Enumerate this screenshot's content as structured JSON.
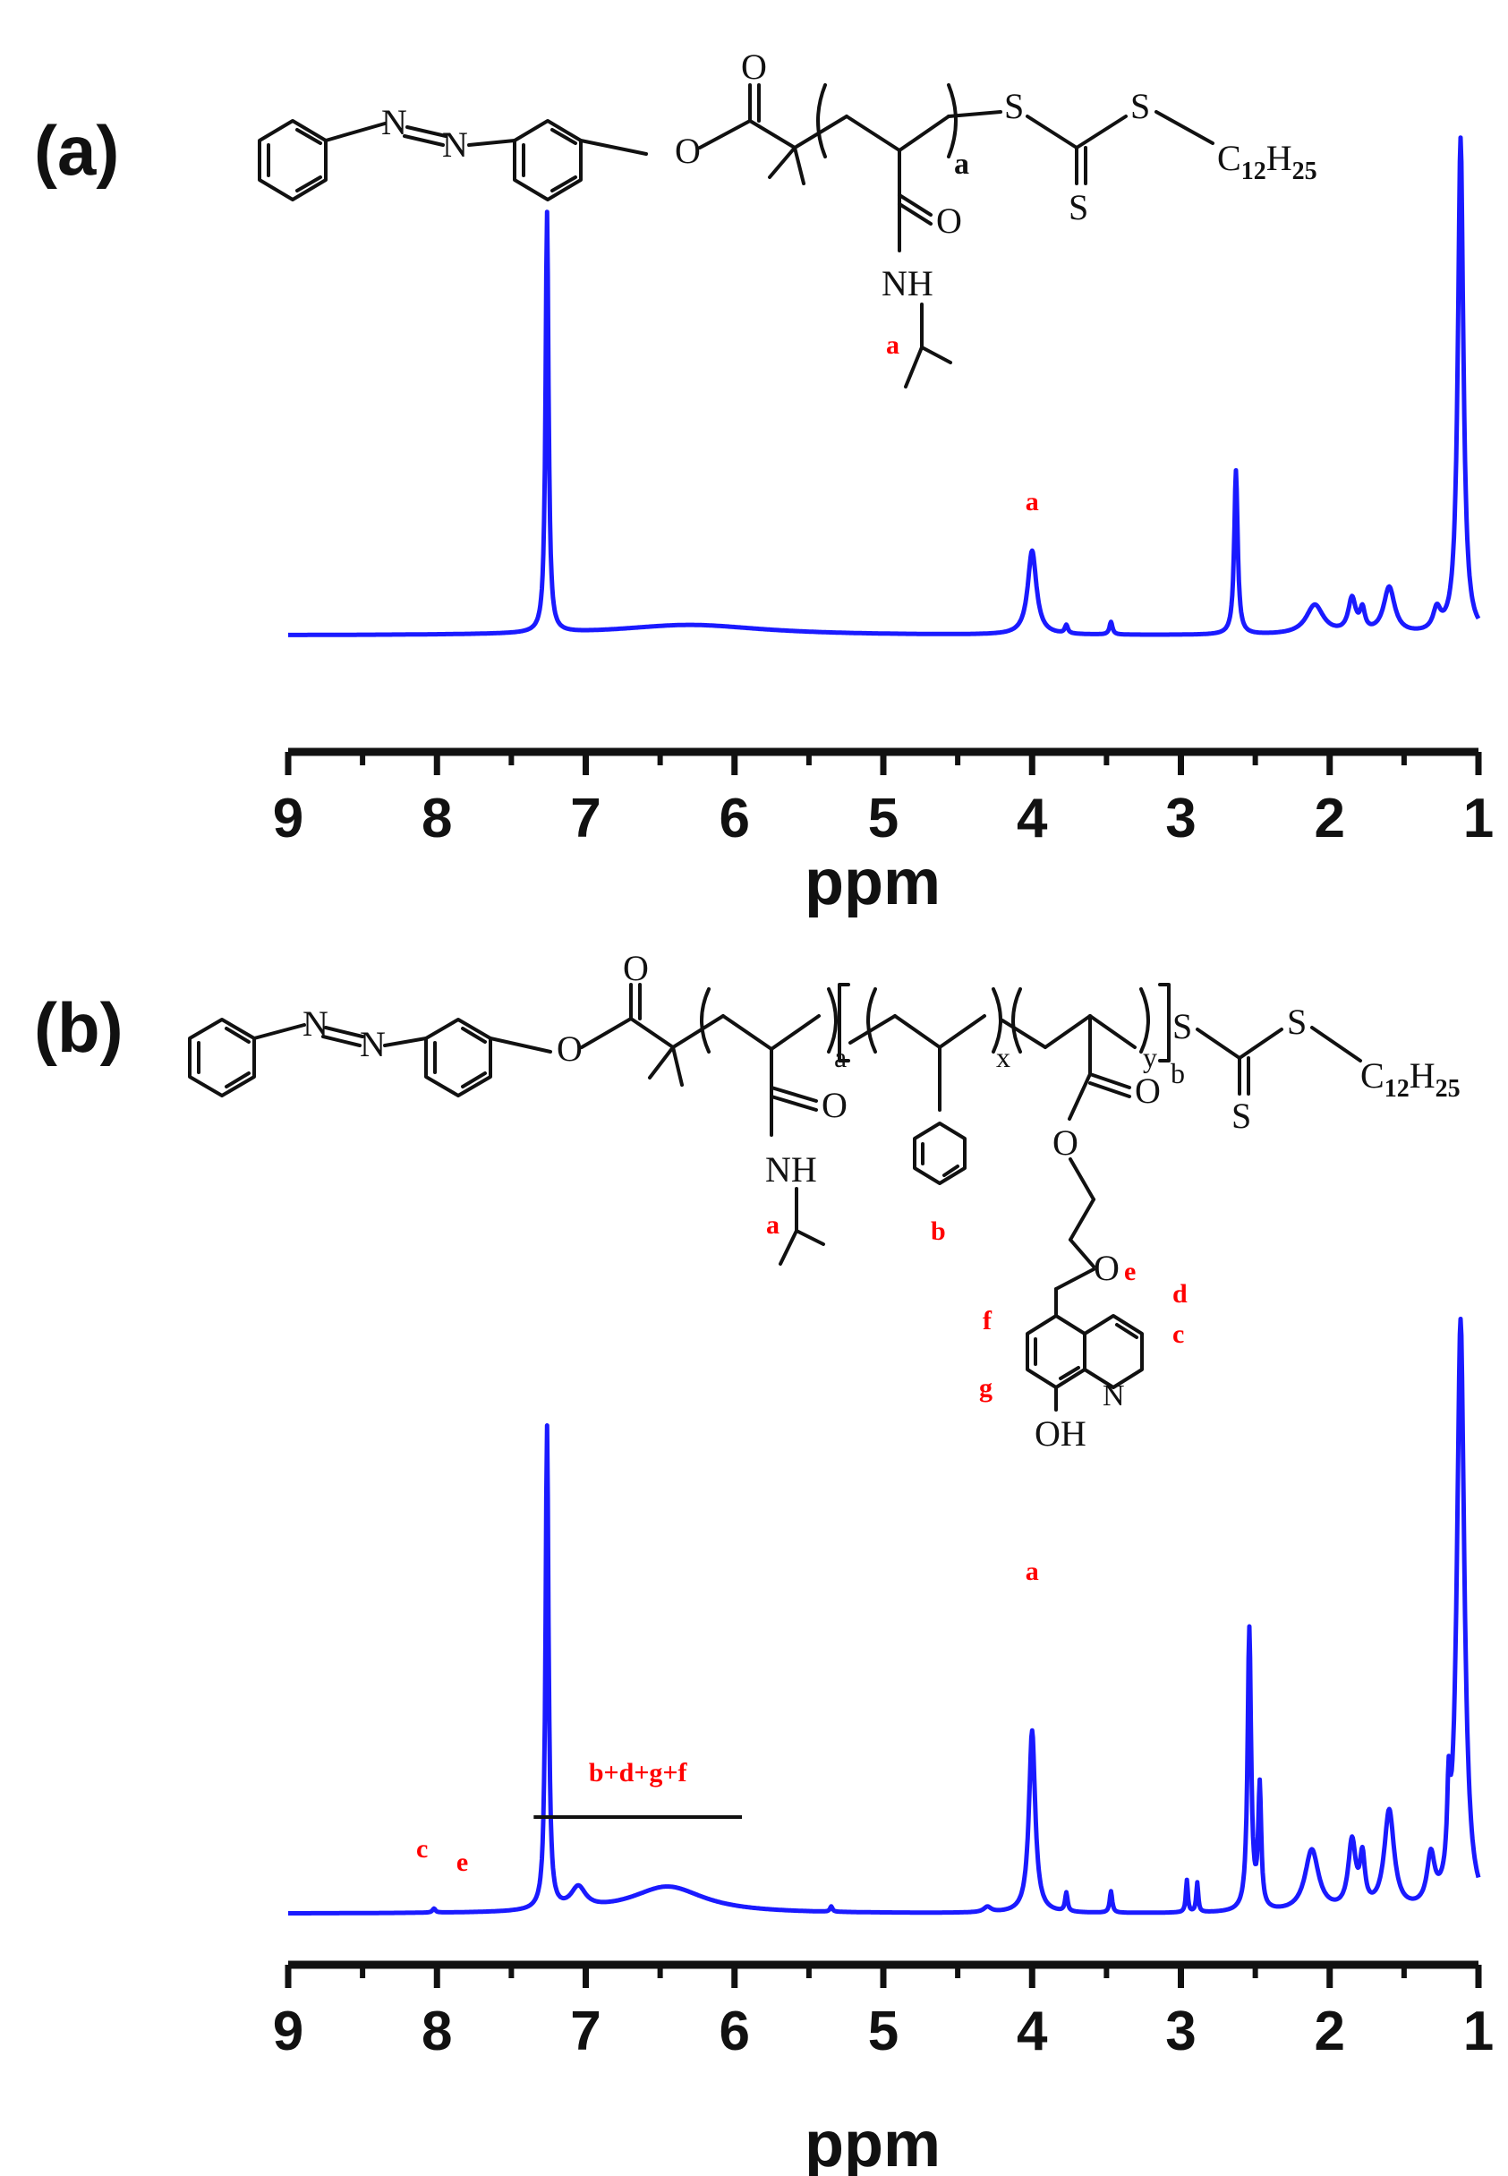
{
  "colors": {
    "spectrum": "#1a1aff",
    "annotation": "#ff0000",
    "axis": "#111111"
  },
  "chart_data": [
    {
      "type": "line",
      "panel_label": "(a)",
      "xlabel": "ppm",
      "xlim": [
        9,
        1
      ],
      "x_reversed": true,
      "xticks": [
        9,
        8,
        7,
        6,
        5,
        4,
        3,
        2,
        1
      ],
      "tick_labels": [
        "9",
        "8",
        "7",
        "6",
        "5",
        "4",
        "3",
        "2",
        "1"
      ],
      "series": [
        {
          "peaks": [
            {
              "ppm": 7.26,
              "height": 1.0,
              "width": 0.012
            },
            {
              "ppm": 6.3,
              "height": 0.025,
              "width": 0.6
            },
            {
              "ppm": 4.0,
              "height": 0.2,
              "width": 0.035
            },
            {
              "ppm": 3.77,
              "height": 0.02,
              "width": 0.012
            },
            {
              "ppm": 3.47,
              "height": 0.03,
              "width": 0.012
            },
            {
              "ppm": 2.63,
              "height": 0.39,
              "width": 0.014
            },
            {
              "ppm": 2.1,
              "height": 0.07,
              "width": 0.07
            },
            {
              "ppm": 1.85,
              "height": 0.08,
              "width": 0.03
            },
            {
              "ppm": 1.78,
              "height": 0.05,
              "width": 0.02
            },
            {
              "ppm": 1.6,
              "height": 0.11,
              "width": 0.045
            },
            {
              "ppm": 1.28,
              "height": 0.05,
              "width": 0.03
            },
            {
              "ppm": 1.12,
              "height": 1.18,
              "width": 0.022
            }
          ]
        }
      ],
      "annotations": [
        {
          "text": "a",
          "ppm": 4.0
        }
      ],
      "structure_labels": {
        "carbonyl_o": "O",
        "ester_o": "O",
        "azo_n1": "N",
        "azo_n2": "N",
        "amide_o": "O",
        "nh": "NH",
        "s1": "S",
        "s2": "S",
        "s3": "S",
        "repeat_sub": "a",
        "alkyl_c": "C",
        "alkyl_c_sub": "12",
        "alkyl_h": "H",
        "alkyl_h_sub": "25",
        "isopropyl_label": "a"
      }
    },
    {
      "type": "line",
      "panel_label": "(b)",
      "xlabel": "ppm",
      "xlim": [
        9,
        1
      ],
      "x_reversed": true,
      "xticks": [
        9,
        8,
        7,
        6,
        5,
        4,
        3,
        2,
        1
      ],
      "tick_labels": [
        "9",
        "8",
        "7",
        "6",
        "5",
        "4",
        "3",
        "2",
        "1"
      ],
      "series": [
        {
          "peaks": [
            {
              "ppm": 7.26,
              "height": 1.8,
              "width": 0.012
            },
            {
              "ppm": 7.05,
              "height": 0.08,
              "width": 0.06
            },
            {
              "ppm": 6.45,
              "height": 0.1,
              "width": 0.3
            },
            {
              "ppm": 8.02,
              "height": 0.015,
              "width": 0.012
            },
            {
              "ppm": 5.35,
              "height": 0.02,
              "width": 0.01
            },
            {
              "ppm": 4.3,
              "height": 0.02,
              "width": 0.03
            },
            {
              "ppm": 4.0,
              "height": 0.68,
              "width": 0.025
            },
            {
              "ppm": 3.77,
              "height": 0.07,
              "width": 0.01
            },
            {
              "ppm": 3.47,
              "height": 0.08,
              "width": 0.01
            },
            {
              "ppm": 2.96,
              "height": 0.12,
              "width": 0.008
            },
            {
              "ppm": 2.89,
              "height": 0.11,
              "width": 0.008
            },
            {
              "ppm": 2.54,
              "height": 1.05,
              "width": 0.014
            },
            {
              "ppm": 2.47,
              "height": 0.45,
              "width": 0.012
            },
            {
              "ppm": 2.12,
              "height": 0.23,
              "width": 0.055
            },
            {
              "ppm": 1.85,
              "height": 0.25,
              "width": 0.03
            },
            {
              "ppm": 1.78,
              "height": 0.18,
              "width": 0.02
            },
            {
              "ppm": 1.6,
              "height": 0.37,
              "width": 0.04
            },
            {
              "ppm": 1.32,
              "height": 0.18,
              "width": 0.03
            },
            {
              "ppm": 1.2,
              "height": 0.3,
              "width": 0.012
            },
            {
              "ppm": 1.12,
              "height": 2.2,
              "width": 0.03
            }
          ]
        }
      ],
      "annotations": [
        {
          "text": "a",
          "ppm": 4.0
        },
        {
          "text": "c",
          "ppm": 8.1
        },
        {
          "text": "e",
          "ppm": 7.83
        },
        {
          "text": "b+d+g+f",
          "ppm_from": 7.35,
          "ppm_to": 5.95
        }
      ],
      "structure_labels": {
        "carbonyl_o": "O",
        "ester_o": "O",
        "azo_n1": "N",
        "azo_n2": "N",
        "amide_o": "O",
        "nh": "NH",
        "s1": "S",
        "s2": "S",
        "s3": "S",
        "sub_a": "a",
        "sub_x": "x",
        "sub_y": "y",
        "sub_b": "b",
        "ester2_o1": "O",
        "ester2_o2": "O",
        "ether_o": "O",
        "ring_n": "N",
        "oh": "OH",
        "alkyl_c": "C",
        "alkyl_c_sub": "12",
        "alkyl_h": "H",
        "alkyl_h_sub": "25",
        "isopropyl_label": "a",
        "phenyl_label": "b",
        "label_e": "e",
        "label_d": "d",
        "label_c": "c",
        "label_f": "f",
        "label_g": "g"
      }
    }
  ]
}
